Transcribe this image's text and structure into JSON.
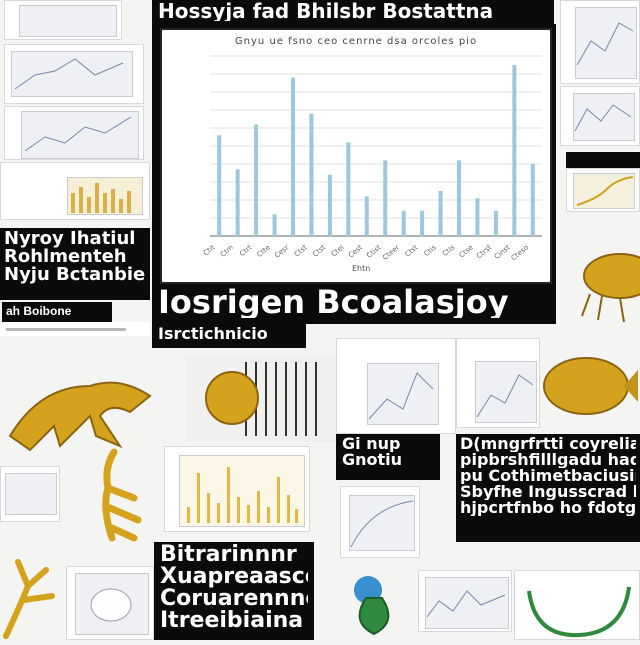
{
  "headings": {
    "top_banner": "Hossyja fad Bhilsbr Bostattna",
    "mid_banner": "Iosrigen Bcoalasjoy",
    "mid_sub": "Isrctichnicio",
    "left_block": [
      "Nyroy Ihatiul",
      "Rohlmenteh",
      "Nyju Bctanbiele"
    ],
    "left_small": "ah Boibone",
    "center_small": [
      "Gi nup",
      "Gnotiu"
    ],
    "right_block": [
      "D(mngrfrtti coyreliant",
      "pipbrshfilllgadu hadadv",
      "pu Cothimetbaciusinp ipd",
      "Sbyfhe Ingusscrad hg",
      "hjpcrtfnbo ho fdotgodtahn"
    ],
    "bottom_block": [
      "Bitrarinnnr",
      "Xuapreaasce",
      "Coruarennne",
      "Itreeibiaina"
    ]
  },
  "chart_data": {
    "type": "bar",
    "title": "Gnyu ue fsno ceo cenrne dsa orcoles pio",
    "xlabel": "Ehtn",
    "ylabel": "",
    "categories": [
      "Ctit",
      "Ctm",
      "Ctrt",
      "Ctte",
      "Cesr",
      "Ctst",
      "Ctst",
      "Ctei",
      "Cest",
      "Ctist",
      "Cteer",
      "Ctst",
      "Ctis",
      "Ctis",
      "Ctse",
      "Ctrst",
      "Cinst",
      "Cteso"
    ],
    "values": [
      56,
      37,
      62,
      12,
      88,
      68,
      34,
      52,
      22,
      42,
      14,
      14,
      25,
      42,
      21,
      14,
      95,
      40
    ],
    "ylim": [
      0,
      100
    ],
    "grid": true,
    "bar_color": "#9cc8de"
  },
  "colors": {
    "golden": "#d4a21c",
    "background": "#f4f4f2",
    "block": "#0b0b0b"
  },
  "icons": [
    "golden-claw-illustration",
    "golden-seed-illustration",
    "golden-beetle-illustration",
    "golden-fish-illustration",
    "golden-root-illustration",
    "green-leaf-illustration",
    "green-pod-illustration",
    "white-cup-illustration"
  ]
}
